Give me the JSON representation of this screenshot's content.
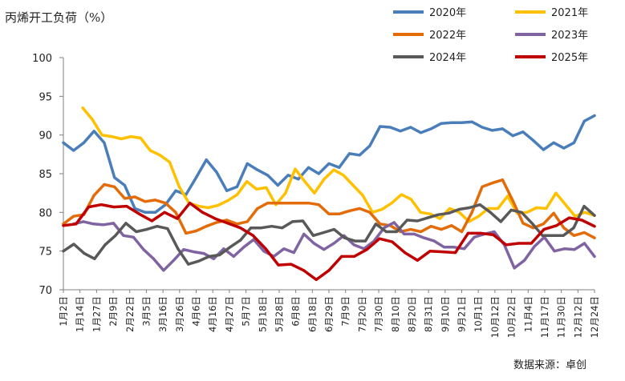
{
  "chart_data": {
    "type": "line",
    "title": "",
    "ylabel": "丙烯开工负荷（%）",
    "source": "数据来源：卓创",
    "ylim": [
      70,
      100
    ],
    "yticks": [
      70,
      75,
      80,
      85,
      90,
      95,
      100
    ],
    "xlabels": [
      "1月2日",
      "1月14日",
      "1月27日",
      "2月9日",
      "2月22日",
      "3月5日",
      "3月16日",
      "3月26日",
      "4月6日",
      "4月16日",
      "4月27日",
      "5月7日",
      "5月18日",
      "5月28日",
      "6月8日",
      "6月18日",
      "6月29日",
      "7月9日",
      "7月20日",
      "7月30日",
      "8月10日",
      "8月20日",
      "8月31日",
      "9月10日",
      "9月21日",
      "10月1日",
      "10月12日",
      "10月22日",
      "11月4日",
      "11月17日",
      "11月30日",
      "12月12日",
      "12月24日"
    ],
    "series": [
      {
        "name": "2020年",
        "color": "#4a7ebb",
        "values": [
          89.0,
          88.0,
          89.0,
          90.5,
          89.0,
          84.5,
          83.5,
          80.5,
          80.0,
          80.0,
          81.0,
          82.8,
          82.3,
          84.5,
          86.8,
          85.2,
          82.8,
          83.3,
          86.3,
          85.5,
          84.8,
          83.5,
          84.8,
          84.3,
          85.8,
          85.0,
          86.3,
          85.8,
          87.6,
          87.4,
          88.6,
          91.1,
          91.0,
          90.5,
          91.0,
          90.3,
          90.8,
          91.5,
          91.6,
          91.6,
          91.7,
          91.0,
          90.6,
          90.8,
          89.9,
          90.4,
          89.3,
          88.1,
          89.0,
          88.3,
          89.0,
          91.8,
          92.5
        ]
      },
      {
        "name": "2021年",
        "color": "#ffc000",
        "values": [
          null,
          null,
          93.5,
          92.0,
          90.0,
          89.8,
          89.5,
          89.8,
          89.6,
          88.0,
          87.4,
          86.5,
          83.3,
          81.2,
          80.8,
          80.6,
          80.9,
          81.5,
          82.3,
          84.0,
          83.0,
          83.2,
          81.0,
          82.5,
          85.6,
          84.0,
          82.5,
          84.3,
          85.5,
          84.8,
          83.5,
          82.2,
          80.0,
          80.4,
          81.2,
          82.3,
          81.7,
          80.0,
          79.8,
          79.2,
          80.5,
          80.0,
          78.8,
          79.5,
          80.5,
          80.5,
          82.1,
          79.9,
          80.0,
          80.6,
          80.5,
          82.5,
          81.0,
          79.5,
          80.0,
          79.6
        ]
      },
      {
        "name": "2022年",
        "color": "#e36c09",
        "values": [
          78.5,
          79.5,
          79.7,
          82.2,
          83.6,
          83.3,
          81.8,
          82.0,
          81.4,
          81.6,
          81.2,
          80.0,
          77.3,
          77.6,
          78.2,
          78.7,
          79.0,
          78.5,
          78.8,
          80.5,
          81.2,
          81.2,
          81.2,
          81.2,
          81.2,
          81.0,
          79.8,
          79.8,
          80.2,
          80.5,
          80.0,
          78.5,
          78.3,
          77.5,
          77.8,
          77.5,
          78.2,
          77.8,
          78.3,
          77.5,
          80.0,
          83.3,
          83.8,
          84.2,
          81.5,
          78.6,
          78.0,
          78.5,
          79.9,
          78.0,
          77.0,
          77.4,
          76.7
        ]
      },
      {
        "name": "2023年",
        "color": "#8064a2",
        "values": [
          null,
          78.5,
          78.8,
          78.5,
          78.4,
          78.6,
          77.0,
          76.8,
          75.2,
          74.0,
          72.5,
          73.8,
          75.2,
          74.9,
          74.7,
          74.0,
          75.3,
          74.3,
          75.5,
          76.5,
          75.0,
          74.3,
          75.3,
          74.8,
          77.2,
          76.0,
          75.2,
          76.0,
          77.0,
          75.8,
          75.3,
          76.3,
          78.0,
          78.7,
          77.2,
          77.2,
          76.7,
          76.3,
          75.5,
          75.5,
          75.3,
          76.8,
          77.2,
          77.5,
          75.8,
          72.8,
          73.8,
          75.6,
          76.8,
          75.0,
          75.3,
          75.2,
          76.0,
          74.3
        ]
      },
      {
        "name": "2024年",
        "color": "#595959",
        "values": [
          75.0,
          75.9,
          74.7,
          74.0,
          75.8,
          77.0,
          78.6,
          77.5,
          77.8,
          78.2,
          77.9,
          75.3,
          73.3,
          73.7,
          74.3,
          74.5,
          75.5,
          76.4,
          78.0,
          78.0,
          78.2,
          78.0,
          78.8,
          78.9,
          77.0,
          77.4,
          77.8,
          76.7,
          76.3,
          76.3,
          78.5,
          77.5,
          77.5,
          79.0,
          78.9,
          79.3,
          79.7,
          79.9,
          80.4,
          80.6,
          81.0,
          80.0,
          78.8,
          80.3,
          80.0,
          78.6,
          77.0,
          77.0,
          77.0,
          78.0,
          80.8,
          79.6
        ]
      },
      {
        "name": "2025年",
        "color": "#c00000",
        "values": [
          78.3,
          78.5,
          80.7,
          81.0,
          80.7,
          80.8,
          79.8,
          78.9,
          80.0,
          79.2,
          81.2,
          80.0,
          79.2,
          78.6,
          78.0,
          77.0,
          75.3,
          73.2,
          73.3,
          72.5,
          71.3,
          72.5,
          74.3,
          74.3,
          75.2,
          76.6,
          76.2,
          74.8,
          73.8,
          75.0,
          74.9,
          74.8,
          77.3,
          77.3,
          77.1,
          75.8,
          76.0,
          76.0,
          77.8,
          78.3,
          79.3,
          79.0,
          78.2
        ]
      }
    ]
  }
}
